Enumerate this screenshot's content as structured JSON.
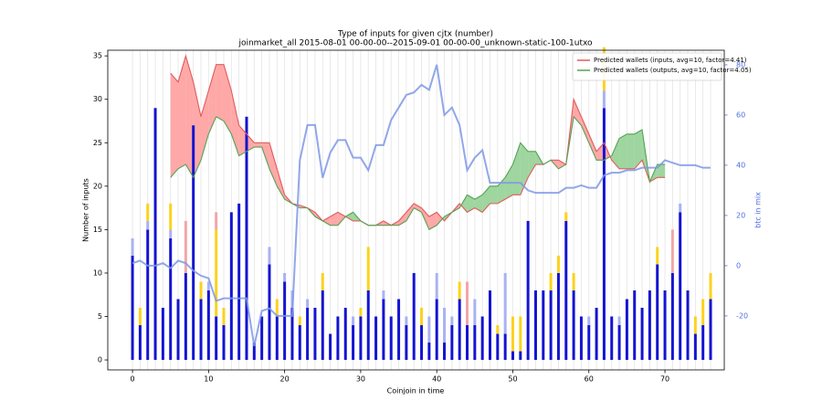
{
  "chart_data": {
    "type": "bar",
    "title": "Type of inputs for given cjtx (number)",
    "subtitle": "joinmarket_all 2015-08-01 00-00-00--2015-09-01 00-00-00_unknown-static-100-1utxo",
    "xlabel": "Coinjoin in time",
    "ylabel": "Number of inputs",
    "y2label": "btc in mix",
    "x": [
      0,
      1,
      2,
      3,
      4,
      5,
      6,
      7,
      8,
      9,
      10,
      11,
      12,
      13,
      14,
      15,
      16,
      17,
      18,
      19,
      20,
      21,
      22,
      23,
      24,
      25,
      26,
      27,
      28,
      29,
      30,
      31,
      32,
      33,
      34,
      35,
      36,
      37,
      38,
      39,
      40,
      41,
      42,
      43,
      44,
      45,
      46,
      47,
      48,
      49,
      50,
      51,
      52,
      53,
      54,
      55,
      56,
      57,
      58,
      59,
      60,
      61,
      62,
      63,
      64,
      65,
      66,
      67,
      68,
      69,
      70,
      71,
      72,
      73,
      74,
      75,
      76
    ],
    "xlim": [
      -3.25,
      77.8
    ],
    "ylim": [
      -1.15,
      35.65
    ],
    "y2lim": [
      -41.5,
      85.8
    ],
    "xticks": [
      0,
      10,
      20,
      30,
      40,
      50,
      60,
      70
    ],
    "yticks": [
      0,
      5,
      10,
      15,
      20,
      25,
      30,
      35
    ],
    "y2ticks": [
      -20,
      0,
      20,
      40,
      60,
      80
    ],
    "grid": true,
    "legend": "upper right",
    "series": [
      {
        "type": "bar",
        "color": "#1414d2",
        "values": [
          12,
          4,
          15,
          29,
          6,
          14,
          7,
          10,
          27,
          7,
          8,
          5,
          4,
          17,
          18,
          28,
          2,
          5,
          11,
          5,
          9,
          6,
          4,
          6,
          6,
          8,
          3,
          5,
          6,
          4,
          5,
          8,
          5,
          7,
          5,
          7,
          4,
          10,
          4,
          2,
          7,
          2,
          4,
          7,
          4,
          4,
          5,
          8,
          3,
          3,
          1,
          1,
          16,
          8,
          8,
          8,
          10,
          16,
          8,
          5,
          4,
          6,
          29,
          5,
          4,
          7,
          8,
          6,
          8,
          11,
          8,
          10,
          17,
          8,
          3,
          4,
          7
        ]
      },
      {
        "type": "bar",
        "color": "#aab2f2",
        "values": [
          2,
          0,
          1,
          0,
          0,
          1,
          0,
          0,
          0,
          0,
          1,
          0,
          0,
          0,
          0,
          0,
          0,
          0,
          2,
          0,
          1,
          2,
          0,
          1,
          0,
          0,
          0,
          0,
          0,
          1,
          0,
          0,
          0,
          1,
          0,
          0,
          1,
          0,
          0,
          3,
          3,
          4,
          1,
          0,
          0,
          3,
          0,
          0,
          0,
          7,
          0,
          0,
          0,
          0,
          0,
          0,
          0,
          0,
          0,
          0,
          1,
          0,
          2,
          0,
          1,
          0,
          0,
          0,
          0,
          0,
          0,
          0,
          1,
          0,
          0,
          0,
          0
        ]
      },
      {
        "type": "bar",
        "color": "#fcd21e",
        "values": [
          0,
          2,
          2,
          0,
          0,
          3,
          0,
          0,
          0,
          2,
          0,
          10,
          2,
          0,
          0,
          0,
          0,
          0,
          0,
          2,
          0,
          0,
          1,
          0,
          0,
          2,
          0,
          0,
          0,
          0,
          1,
          5,
          0,
          0,
          0,
          0,
          0,
          0,
          2,
          0,
          0,
          0,
          0,
          2,
          0,
          0,
          0,
          0,
          1,
          0,
          4,
          4,
          0,
          0,
          0,
          2,
          2,
          1,
          2,
          0,
          0,
          0,
          5,
          0,
          0,
          0,
          0,
          0,
          0,
          2,
          0,
          0,
          0,
          0,
          2,
          3,
          3
        ]
      },
      {
        "type": "bar",
        "color": "#f2a6a6",
        "values": [
          0,
          0,
          0,
          0,
          0,
          0,
          0,
          6,
          0,
          0,
          0,
          2,
          0,
          0,
          0,
          0,
          0,
          0,
          0,
          0,
          0,
          0,
          0,
          0,
          0,
          0,
          0,
          0,
          0,
          0,
          0,
          0,
          0,
          0,
          0,
          0,
          0,
          0,
          0,
          0,
          0,
          0,
          0,
          0,
          5,
          0,
          0,
          0,
          0,
          0,
          0,
          0,
          0,
          0,
          0,
          0,
          0,
          0,
          0,
          0,
          0,
          0,
          0,
          0,
          0,
          0,
          0,
          0,
          0,
          0,
          0,
          5,
          0,
          0,
          0,
          0,
          0
        ]
      },
      {
        "type": "line",
        "name": "Predicted wallets (inputs, avg=10, factor=4.41)",
        "color": "#e05c5c",
        "fill": "#ffa8a8",
        "values": [
          null,
          null,
          null,
          null,
          null,
          33,
          32,
          35,
          32,
          28,
          31,
          34,
          34,
          31,
          27,
          26,
          25,
          25,
          25,
          22,
          19,
          18,
          17.8,
          17.5,
          17,
          16,
          16.5,
          17,
          16.5,
          16,
          16,
          15.5,
          15.5,
          16,
          15.5,
          16,
          17,
          18,
          17.5,
          16.5,
          17,
          16,
          17,
          18,
          17,
          17.5,
          17,
          18,
          18,
          18.5,
          19,
          19,
          21,
          22.5,
          22.5,
          23,
          23,
          22.5,
          30,
          28,
          26,
          24,
          25,
          23,
          22,
          22,
          22,
          23,
          20.5,
          21,
          21,
          null,
          null,
          null,
          null,
          null,
          null
        ]
      },
      {
        "type": "line",
        "name": "Predicted wallets (outputs, avg=10, factor=4.05)",
        "color": "#54a354",
        "fill": "#9fd59f",
        "values": [
          null,
          null,
          null,
          null,
          null,
          21,
          22,
          22.5,
          21,
          23,
          26,
          28,
          27.5,
          26,
          23.5,
          24,
          24.5,
          24.5,
          22,
          20,
          18.5,
          18,
          17.5,
          17.5,
          16.5,
          16,
          15.5,
          15.5,
          16.5,
          17,
          16,
          15.5,
          15.5,
          15.5,
          15.5,
          15.5,
          16,
          17.5,
          17,
          15,
          15.5,
          16.5,
          17,
          17.5,
          19,
          18.5,
          19,
          20,
          20,
          21,
          22.5,
          25,
          24,
          24,
          22.5,
          23,
          22,
          22.5,
          28,
          27,
          25,
          23,
          23,
          23.5,
          25.5,
          26,
          26,
          26.5,
          20.5,
          22.5,
          22.5,
          null,
          null,
          null,
          null,
          null,
          null
        ]
      },
      {
        "type": "line",
        "axis": "y2",
        "color": "#7e98e6",
        "values": [
          1,
          2,
          0,
          0,
          1,
          -1,
          2,
          1,
          -2,
          -4,
          -5,
          -14,
          -13,
          -13,
          -13,
          -13,
          -32,
          -18,
          -17,
          -20,
          -20,
          -20,
          42,
          56,
          56,
          35,
          45,
          50,
          50,
          43,
          43,
          38,
          48,
          48,
          58,
          63,
          68,
          69,
          72,
          70,
          80,
          60,
          63,
          56,
          38,
          43,
          46,
          33,
          33,
          33,
          33,
          33,
          30,
          29,
          29,
          29,
          29,
          31,
          31,
          32,
          31,
          31,
          36,
          37,
          37,
          38,
          38,
          39,
          39,
          39,
          42,
          41,
          40,
          40,
          40,
          39,
          39
        ]
      }
    ]
  }
}
